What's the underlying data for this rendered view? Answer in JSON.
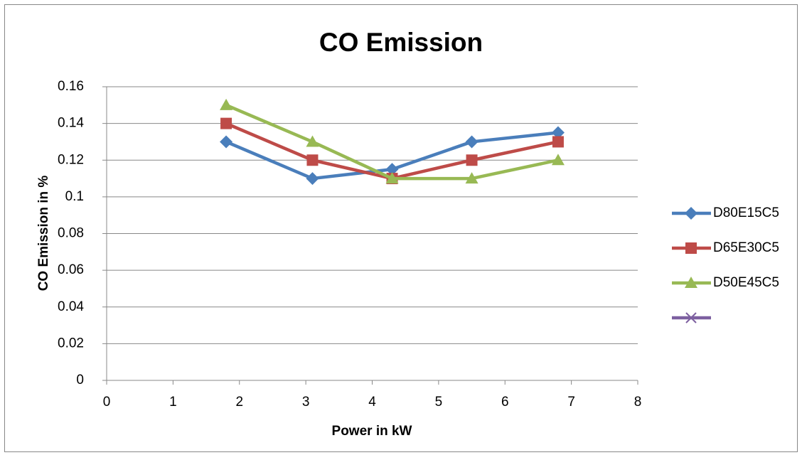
{
  "chart_data": {
    "type": "line",
    "title": "CO Emission",
    "x_label": "Power in kW",
    "y_label": "CO Emission in %",
    "x": [
      1.8,
      3.1,
      4.3,
      5.5,
      6.8
    ],
    "series": [
      {
        "name": "D80E15C5",
        "color": "#4a7ebb",
        "marker": "diamond",
        "values": [
          0.13,
          0.11,
          0.115,
          0.13,
          0.135
        ]
      },
      {
        "name": "D65E30C5",
        "color": "#be4b48",
        "marker": "square",
        "values": [
          0.14,
          0.12,
          0.11,
          0.12,
          0.13
        ]
      },
      {
        "name": "D50E45C5",
        "color": "#98b954",
        "marker": "triangle",
        "values": [
          0.15,
          0.13,
          0.11,
          0.11,
          0.12
        ]
      },
      {
        "color": "#7d60a0",
        "marker": "x",
        "values": [
          null,
          null,
          null,
          null,
          null
        ]
      }
    ],
    "xlim": [
      0,
      8
    ],
    "xticks": [
      0,
      1,
      2,
      3,
      4,
      5,
      6,
      7,
      8
    ],
    "ylim": [
      0,
      0.16
    ],
    "yticks": [
      0,
      0.02,
      0.04,
      0.06,
      0.08,
      0.1,
      0.12,
      0.14,
      0.16
    ],
    "grid": true,
    "legend": "right"
  }
}
